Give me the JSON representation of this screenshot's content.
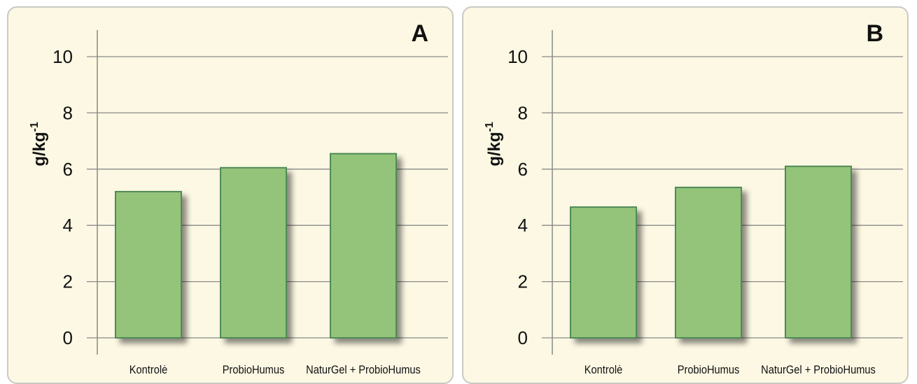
{
  "chart_data": [
    {
      "type": "bar",
      "panel_label": "A",
      "categories": [
        "Kontrolė",
        "ProbioHumus",
        "NaturGel + ProbioHumus"
      ],
      "values": [
        5.2,
        6.05,
        6.55
      ],
      "ylabel": "g/kg-1",
      "ylabel_base": "g/kg",
      "ylabel_sup": "-1",
      "yticks": [
        "0",
        "2",
        "4",
        "6",
        "8",
        "10"
      ],
      "ylim": [
        0,
        10.5
      ],
      "grid": true,
      "bar_color": "#94c37a",
      "bar_border_color": "#4f8b57"
    },
    {
      "type": "bar",
      "panel_label": "B",
      "categories": [
        "Kontrolė",
        "ProbioHumus",
        "NaturGel + ProbioHumus"
      ],
      "values": [
        4.65,
        5.35,
        6.1
      ],
      "ylabel": "g/kg-1",
      "ylabel_base": "g/kg",
      "ylabel_sup": "-1",
      "yticks": [
        "0",
        "2",
        "4",
        "6",
        "8",
        "10"
      ],
      "ylim": [
        0,
        10.5
      ],
      "grid": true,
      "bar_color": "#94c37a",
      "bar_border_color": "#4f8b57"
    }
  ]
}
